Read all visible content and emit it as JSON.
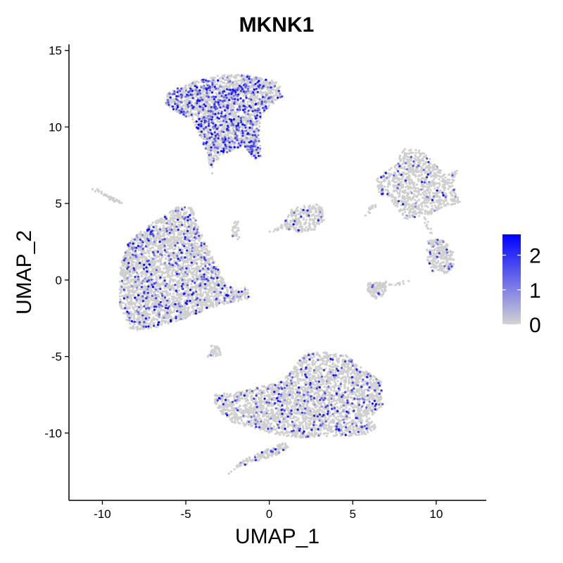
{
  "chart_data": {
    "type": "scatter",
    "title": "MKNK1",
    "xlabel": "UMAP_1",
    "ylabel": "UMAP_2",
    "xlim": [
      -12,
      13
    ],
    "ylim": [
      -14.4,
      15.4
    ],
    "x_ticks": [
      -10,
      -5,
      0,
      5,
      10
    ],
    "y_ticks": [
      -10,
      -5,
      0,
      5,
      10,
      15
    ],
    "x_tick_labels": [
      "-10",
      "-5",
      "0",
      "5",
      "10"
    ],
    "y_tick_labels": [
      "-10",
      "-5",
      "0",
      "5",
      "10",
      "15"
    ],
    "grid": false,
    "legend": {
      "placement": "right",
      "scale": "continuous",
      "low_color": "#d3d3d3",
      "high_color": "#0000ff",
      "min": 0,
      "max": 2.6,
      "ticks": [
        0,
        1,
        2
      ],
      "tick_labels": [
        "0",
        "1",
        "2"
      ]
    },
    "point_color_base": "#cfcfcf",
    "clusters": [
      {
        "shape": "polygon",
        "points": [
          [
            -8.4,
            -3.1
          ],
          [
            -9.0,
            -1.5
          ],
          [
            -8.9,
            1.0
          ],
          [
            -8.4,
            2.5
          ],
          [
            -7.2,
            3.6
          ],
          [
            -5.5,
            4.8
          ],
          [
            -4.6,
            4.7
          ],
          [
            -4.2,
            3.3
          ],
          [
            -3.3,
            1.3
          ],
          [
            -2.6,
            -0.3
          ],
          [
            -1.9,
            -0.7
          ],
          [
            -1.3,
            -0.4
          ],
          [
            -1.2,
            -1.2
          ],
          [
            -2.3,
            -1.5
          ],
          [
            -3.5,
            -1.8
          ],
          [
            -5.2,
            -2.6
          ],
          [
            -6.8,
            -3.1
          ],
          [
            -8.0,
            -3.3
          ]
        ],
        "n": 3200,
        "expr_frac": 0.12
      },
      {
        "shape": "polygon",
        "points": [
          [
            -6.2,
            11.5
          ],
          [
            -6.1,
            12.2
          ],
          [
            -4.7,
            12.9
          ],
          [
            -2.9,
            13.4
          ],
          [
            -1.2,
            13.4
          ],
          [
            0.6,
            12.9
          ],
          [
            0.8,
            12.0
          ],
          [
            0.2,
            11.5
          ],
          [
            -0.5,
            10.8
          ],
          [
            -0.6,
            9.5
          ],
          [
            -0.5,
            8.0
          ],
          [
            -0.9,
            7.8
          ],
          [
            -1.5,
            8.8
          ],
          [
            -2.8,
            8.2
          ],
          [
            -3.4,
            7.5
          ],
          [
            -3.4,
            6.8
          ],
          [
            -3.8,
            8.5
          ],
          [
            -4.6,
            10.5
          ],
          [
            -5.6,
            11.0
          ]
        ],
        "n": 2400,
        "expr_frac": 0.22
      },
      {
        "shape": "polygon",
        "points": [
          [
            -3.3,
            -7.5
          ],
          [
            -1.8,
            -7.3
          ],
          [
            0.8,
            -6.6
          ],
          [
            1.4,
            -5.8
          ],
          [
            2.1,
            -4.8
          ],
          [
            3.3,
            -4.7
          ],
          [
            4.6,
            -4.9
          ],
          [
            5.6,
            -5.8
          ],
          [
            6.7,
            -6.6
          ],
          [
            6.8,
            -8.2
          ],
          [
            6.0,
            -9.0
          ],
          [
            6.5,
            -9.7
          ],
          [
            5.5,
            -10.2
          ],
          [
            3.3,
            -10.2
          ],
          [
            2.0,
            -10.3
          ],
          [
            0.8,
            -10.2
          ],
          [
            -0.7,
            -9.8
          ],
          [
            -2.2,
            -9.3
          ],
          [
            -2.8,
            -8.8
          ],
          [
            -3.3,
            -8.0
          ]
        ],
        "n": 2800,
        "expr_frac": 0.1
      },
      {
        "shape": "polygon",
        "points": [
          [
            -2.6,
            -12.8
          ],
          [
            -1.8,
            -12.2
          ],
          [
            0.5,
            -11.4
          ],
          [
            1.2,
            -10.9
          ],
          [
            0.9,
            -10.6
          ],
          [
            -0.4,
            -11.2
          ],
          [
            -1.6,
            -11.8
          ],
          [
            -2.4,
            -12.6
          ]
        ],
        "n": 160,
        "expr_frac": 0.1
      },
      {
        "shape": "polygon",
        "points": [
          [
            6.7,
            6.9
          ],
          [
            7.6,
            7.5
          ],
          [
            8.0,
            8.6
          ],
          [
            9.2,
            8.5
          ],
          [
            9.7,
            7.8
          ],
          [
            10.6,
            6.8
          ],
          [
            11.3,
            7.2
          ],
          [
            11.0,
            6.2
          ],
          [
            11.5,
            5.0
          ],
          [
            10.4,
            4.8
          ],
          [
            9.8,
            4.3
          ],
          [
            8.7,
            4.1
          ],
          [
            8.2,
            3.9
          ],
          [
            7.7,
            4.6
          ],
          [
            7.2,
            5.4
          ],
          [
            6.6,
            5.6
          ],
          [
            6.4,
            6.5
          ]
        ],
        "n": 900,
        "expr_frac": 0.06
      },
      {
        "shape": "polygon",
        "points": [
          [
            9.5,
            2.7
          ],
          [
            10.4,
            2.6
          ],
          [
            11.1,
            1.8
          ],
          [
            11.0,
            0.8
          ],
          [
            10.6,
            0.4
          ],
          [
            9.7,
            0.6
          ],
          [
            9.4,
            1.5
          ]
        ],
        "n": 240,
        "expr_frac": 0.07
      },
      {
        "shape": "polygon",
        "points": [
          [
            5.9,
            -0.2
          ],
          [
            7.0,
            -0.1
          ],
          [
            7.0,
            -0.8
          ],
          [
            6.5,
            -1.3
          ],
          [
            5.9,
            -0.9
          ]
        ],
        "n": 110,
        "expr_frac": 0.05
      },
      {
        "shape": "polygon",
        "points": [
          [
            0.9,
            3.8
          ],
          [
            1.4,
            4.7
          ],
          [
            1.9,
            4.8
          ],
          [
            2.8,
            5.0
          ],
          [
            3.2,
            4.7
          ],
          [
            3.3,
            3.9
          ],
          [
            2.8,
            3.3
          ],
          [
            1.7,
            3.1
          ],
          [
            1.0,
            3.3
          ]
        ],
        "n": 260,
        "expr_frac": 0.04
      },
      {
        "shape": "polygon",
        "points": [
          [
            -3.5,
            -4.2
          ],
          [
            -3.0,
            -4.4
          ],
          [
            -2.9,
            -4.9
          ],
          [
            -3.7,
            -5.1
          ]
        ],
        "n": 40,
        "expr_frac": 0.05
      },
      {
        "shape": "polygon",
        "points": [
          [
            -2.1,
            3.9
          ],
          [
            -1.8,
            3.8
          ],
          [
            -1.8,
            2.6
          ],
          [
            -2.3,
            2.8
          ]
        ],
        "n": 30,
        "expr_frac": 0.05
      },
      {
        "shape": "line",
        "points": [
          [
            -10.5,
            5.9
          ],
          [
            -8.8,
            5.0
          ]
        ],
        "n": 45,
        "expr_frac": 0.0
      },
      {
        "shape": "line",
        "points": [
          [
            5.7,
            -0.6
          ],
          [
            8.5,
            -0.1
          ]
        ],
        "n": 25,
        "expr_frac": 0.0
      },
      {
        "shape": "line",
        "points": [
          [
            1.1,
            3.7
          ],
          [
            0.1,
            3.1
          ]
        ],
        "n": 18,
        "expr_frac": 0.0
      },
      {
        "shape": "line",
        "points": [
          [
            9.7,
            3.0
          ],
          [
            9.3,
            4.2
          ]
        ],
        "n": 12,
        "expr_frac": 0.0
      },
      {
        "shape": "line",
        "points": [
          [
            6.3,
            4.9
          ],
          [
            5.8,
            4.3
          ]
        ],
        "n": 12,
        "expr_frac": 0.0
      },
      {
        "shape": "line",
        "points": [
          [
            -1.3,
            -8.5
          ],
          [
            0.4,
            -7.7
          ]
        ],
        "n": 20,
        "expr_frac": 0.05
      }
    ]
  }
}
